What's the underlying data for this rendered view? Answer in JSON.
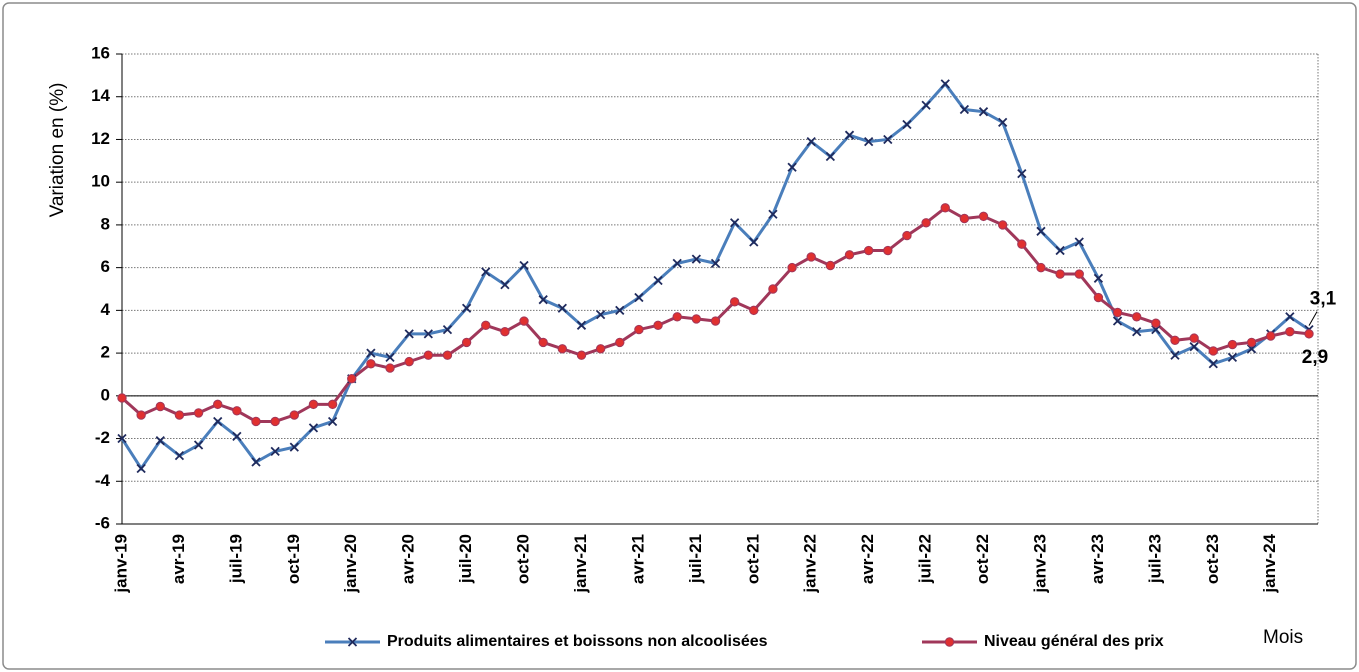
{
  "chart_data": {
    "type": "line",
    "y_label": "Variation en (%)",
    "x_label": "Mois",
    "categories": [
      "janv-19",
      null,
      null,
      "avr-19",
      null,
      null,
      "juil-19",
      null,
      null,
      "oct-19",
      null,
      null,
      "janv-20",
      null,
      null,
      "avr-20",
      null,
      null,
      "juil-20",
      null,
      null,
      "oct-20",
      null,
      null,
      "janv-21",
      null,
      null,
      "avr-21",
      null,
      null,
      "juil-21",
      null,
      null,
      "oct-21",
      null,
      null,
      "janv-22",
      null,
      null,
      "avr-22",
      null,
      null,
      "juil-22",
      null,
      null,
      "oct-22",
      null,
      null,
      "janv-23",
      null,
      null,
      "avr-23",
      null,
      null,
      "juil-23",
      null,
      null,
      "oct-23",
      null,
      null,
      "janv-24",
      null,
      null
    ],
    "series": [
      {
        "name": "Produits alimentaires et boissons non alcoolisées",
        "color": "#4a7ebb",
        "marker": "x",
        "marker_color": "#1f2a5c",
        "values": [
          -2.0,
          -3.4,
          -2.1,
          -2.8,
          -2.3,
          -1.2,
          -1.9,
          -3.1,
          -2.6,
          -2.4,
          -1.5,
          -1.2,
          0.8,
          2.0,
          1.8,
          2.9,
          2.9,
          3.1,
          4.1,
          5.8,
          5.2,
          6.1,
          4.5,
          4.1,
          3.3,
          3.8,
          4.0,
          4.6,
          5.4,
          6.2,
          6.4,
          6.2,
          8.1,
          7.2,
          8.5,
          10.7,
          11.9,
          11.2,
          12.2,
          11.9,
          12.0,
          12.7,
          13.6,
          14.6,
          13.4,
          13.3,
          12.8,
          10.4,
          7.7,
          6.8,
          7.2,
          5.5,
          3.5,
          3.0,
          3.1,
          1.9,
          2.3,
          1.5,
          1.8,
          2.2,
          2.9,
          3.7,
          3.1
        ]
      },
      {
        "name": "Niveau général des prix",
        "color": "#a0375a",
        "marker": "o",
        "marker_color": "#e03030",
        "values": [
          -0.1,
          -0.9,
          -0.5,
          -0.9,
          -0.8,
          -0.4,
          -0.7,
          -1.2,
          -1.2,
          -0.9,
          -0.4,
          -0.4,
          0.8,
          1.5,
          1.3,
          1.6,
          1.9,
          1.9,
          2.5,
          3.3,
          3.0,
          3.5,
          2.5,
          2.2,
          1.9,
          2.2,
          2.5,
          3.1,
          3.3,
          3.7,
          3.6,
          3.5,
          4.4,
          4.0,
          5.0,
          6.0,
          6.5,
          6.1,
          6.6,
          6.8,
          6.8,
          7.5,
          8.1,
          8.8,
          8.3,
          8.4,
          8.0,
          7.1,
          6.0,
          5.7,
          5.7,
          4.6,
          3.9,
          3.7,
          3.4,
          2.6,
          2.7,
          2.1,
          2.4,
          2.5,
          2.8,
          3.0,
          2.9
        ]
      }
    ],
    "annotations": [
      "3,1",
      "2,9"
    ],
    "ylim": [
      -6,
      16
    ],
    "yticks": [
      -6,
      -4,
      -2,
      0,
      2,
      4,
      6,
      8,
      10,
      12,
      14,
      16
    ],
    "grid": true
  }
}
